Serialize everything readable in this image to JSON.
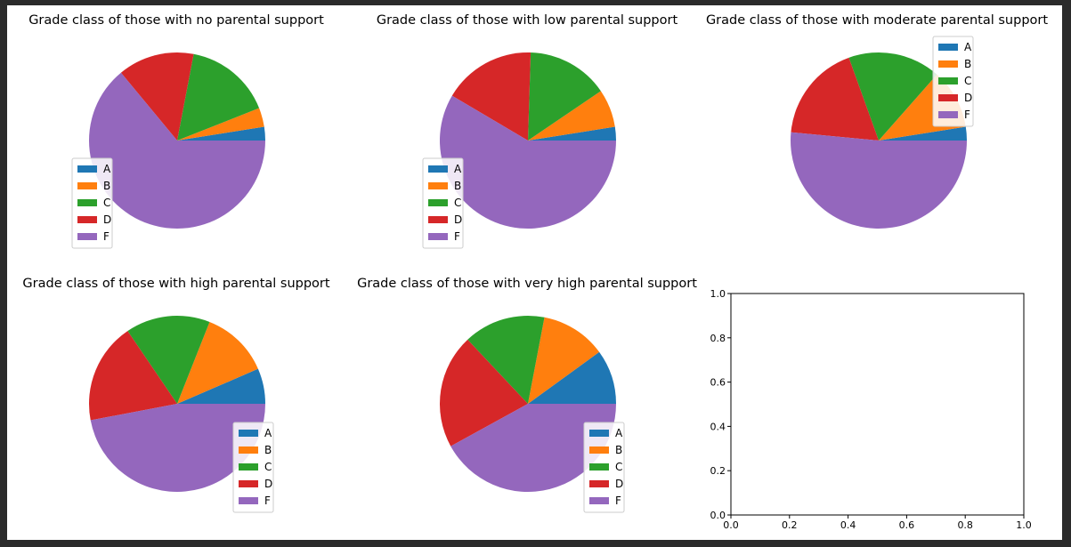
{
  "chart_data": [
    {
      "type": "pie",
      "title": "Grade class of those with no parental support",
      "labels": [
        "A",
        "B",
        "C",
        "D",
        "F"
      ],
      "values": [
        2.5,
        3.5,
        16,
        14,
        64
      ],
      "colors": [
        "#1f77b4",
        "#ff7f0e",
        "#2ca02c",
        "#d62728",
        "#9467bd"
      ],
      "legend_placement": "lower-left"
    },
    {
      "type": "pie",
      "title": "Grade class of those with low parental support",
      "labels": [
        "A",
        "B",
        "C",
        "D",
        "F"
      ],
      "values": [
        2.5,
        7,
        15,
        17,
        58.5
      ],
      "colors": [
        "#1f77b4",
        "#ff7f0e",
        "#2ca02c",
        "#d62728",
        "#9467bd"
      ],
      "legend_placement": "lower-left"
    },
    {
      "type": "pie",
      "title": "Grade class of those with moderate parental support",
      "labels": [
        "A",
        "B",
        "C",
        "D",
        "F"
      ],
      "values": [
        2.5,
        11,
        17,
        18,
        51.5
      ],
      "colors": [
        "#1f77b4",
        "#ff7f0e",
        "#2ca02c",
        "#d62728",
        "#9467bd"
      ],
      "legend_placement": "upper-right"
    },
    {
      "type": "pie",
      "title": "Grade class of those with high parental support",
      "labels": [
        "A",
        "B",
        "C",
        "D",
        "F"
      ],
      "values": [
        6.5,
        12.5,
        15.5,
        18.5,
        47
      ],
      "colors": [
        "#1f77b4",
        "#ff7f0e",
        "#2ca02c",
        "#d62728",
        "#9467bd"
      ],
      "legend_placement": "lower-right"
    },
    {
      "type": "pie",
      "title": "Grade class of those with very high parental support",
      "labels": [
        "A",
        "B",
        "C",
        "D",
        "F"
      ],
      "values": [
        10,
        12,
        15,
        21,
        42
      ],
      "colors": [
        "#1f77b4",
        "#ff7f0e",
        "#2ca02c",
        "#d62728",
        "#9467bd"
      ],
      "legend_placement": "lower-right"
    },
    {
      "type": "line",
      "title": "",
      "series": [],
      "xlim": [
        0.0,
        1.0
      ],
      "ylim": [
        0.0,
        1.0
      ],
      "xticks": [
        "0.0",
        "0.2",
        "0.4",
        "0.6",
        "0.8",
        "1.0"
      ],
      "yticks": [
        "0.0",
        "0.2",
        "0.4",
        "0.6",
        "0.8",
        "1.0"
      ],
      "grid": false
    }
  ]
}
